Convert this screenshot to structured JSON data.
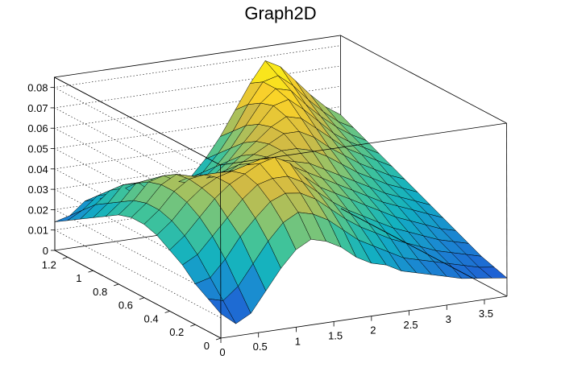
{
  "chart_data": {
    "type": "surface",
    "title": "Graph2D",
    "x_range": [
      0,
      3.8
    ],
    "y_range": [
      0,
      1.3
    ],
    "z_range": [
      0,
      0.085
    ],
    "x_ticks": [
      "0",
      "0.5",
      "1",
      "1.5",
      "2",
      "2.5",
      "3",
      "3.5"
    ],
    "y_ticks": [
      "0",
      "0.2",
      "0.4",
      "0.6",
      "0.8",
      "1",
      "1.2"
    ],
    "z_ticks": [
      "0",
      "0.01",
      "0.02",
      "0.03",
      "0.04",
      "0.05",
      "0.06",
      "0.07",
      "0.08"
    ],
    "grid_x": [
      0,
      0.2,
      0.4,
      0.6,
      0.8,
      1.0,
      1.2,
      1.4,
      1.6,
      1.8,
      2.0,
      2.2,
      2.4,
      2.6,
      2.8,
      3.0,
      3.2,
      3.4,
      3.6,
      3.8
    ],
    "grid_y": [
      0,
      0.1,
      0.2,
      0.3,
      0.4,
      0.5,
      0.6,
      0.7,
      0.8,
      0.9,
      1.0,
      1.1,
      1.2,
      1.3
    ],
    "z_values": [
      [
        0.012,
        0.006,
        0.01,
        0.02,
        0.03,
        0.038,
        0.042,
        0.04,
        0.036,
        0.03,
        0.026,
        0.024,
        0.02,
        0.018,
        0.016,
        0.014,
        0.012,
        0.011,
        0.01,
        0.009
      ],
      [
        0.016,
        0.014,
        0.02,
        0.03,
        0.04,
        0.048,
        0.052,
        0.05,
        0.046,
        0.04,
        0.034,
        0.03,
        0.026,
        0.022,
        0.02,
        0.018,
        0.016,
        0.014,
        0.012,
        0.011
      ],
      [
        0.02,
        0.022,
        0.03,
        0.04,
        0.048,
        0.055,
        0.058,
        0.057,
        0.053,
        0.047,
        0.041,
        0.036,
        0.032,
        0.028,
        0.025,
        0.022,
        0.019,
        0.017,
        0.015,
        0.013
      ],
      [
        0.026,
        0.03,
        0.038,
        0.046,
        0.054,
        0.06,
        0.062,
        0.062,
        0.058,
        0.052,
        0.046,
        0.041,
        0.037,
        0.033,
        0.029,
        0.026,
        0.023,
        0.02,
        0.018,
        0.016
      ],
      [
        0.03,
        0.036,
        0.044,
        0.052,
        0.058,
        0.062,
        0.066,
        0.068,
        0.064,
        0.056,
        0.05,
        0.046,
        0.042,
        0.038,
        0.034,
        0.03,
        0.027,
        0.024,
        0.021,
        0.019
      ],
      [
        0.034,
        0.04,
        0.048,
        0.054,
        0.058,
        0.06,
        0.062,
        0.064,
        0.062,
        0.058,
        0.054,
        0.05,
        0.046,
        0.042,
        0.038,
        0.034,
        0.031,
        0.028,
        0.025,
        0.022
      ],
      [
        0.036,
        0.042,
        0.05,
        0.055,
        0.056,
        0.056,
        0.056,
        0.058,
        0.058,
        0.058,
        0.056,
        0.054,
        0.05,
        0.046,
        0.042,
        0.038,
        0.034,
        0.031,
        0.028,
        0.025
      ],
      [
        0.036,
        0.042,
        0.05,
        0.054,
        0.052,
        0.05,
        0.05,
        0.052,
        0.054,
        0.056,
        0.058,
        0.058,
        0.056,
        0.052,
        0.047,
        0.042,
        0.038,
        0.034,
        0.031,
        0.028
      ],
      [
        0.034,
        0.04,
        0.048,
        0.05,
        0.046,
        0.044,
        0.044,
        0.046,
        0.05,
        0.054,
        0.058,
        0.062,
        0.062,
        0.058,
        0.052,
        0.047,
        0.042,
        0.038,
        0.034,
        0.031
      ],
      [
        0.03,
        0.036,
        0.044,
        0.045,
        0.04,
        0.038,
        0.038,
        0.04,
        0.044,
        0.05,
        0.056,
        0.062,
        0.066,
        0.064,
        0.058,
        0.052,
        0.046,
        0.042,
        0.038,
        0.034
      ],
      [
        0.026,
        0.032,
        0.04,
        0.04,
        0.034,
        0.032,
        0.032,
        0.034,
        0.038,
        0.044,
        0.052,
        0.06,
        0.068,
        0.07,
        0.064,
        0.057,
        0.05,
        0.045,
        0.041,
        0.037
      ],
      [
        0.022,
        0.028,
        0.034,
        0.034,
        0.028,
        0.026,
        0.026,
        0.028,
        0.032,
        0.038,
        0.046,
        0.056,
        0.066,
        0.072,
        0.07,
        0.062,
        0.055,
        0.049,
        0.044,
        0.04
      ],
      [
        0.018,
        0.022,
        0.028,
        0.028,
        0.022,
        0.02,
        0.02,
        0.022,
        0.026,
        0.032,
        0.04,
        0.05,
        0.062,
        0.072,
        0.074,
        0.068,
        0.06,
        0.053,
        0.047,
        0.043
      ],
      [
        0.014,
        0.016,
        0.022,
        0.022,
        0.016,
        0.014,
        0.014,
        0.016,
        0.02,
        0.026,
        0.034,
        0.044,
        0.056,
        0.068,
        0.078,
        0.074,
        0.066,
        0.058,
        0.051,
        0.046
      ]
    ],
    "colormap": [
      "#352a87",
      "#1f5fd4",
      "#1a8bd1",
      "#12b1c1",
      "#40c39a",
      "#8fc46c",
      "#d0ba45",
      "#f9d12a",
      "#f9fb0e"
    ],
    "grid": true,
    "legend": false
  }
}
